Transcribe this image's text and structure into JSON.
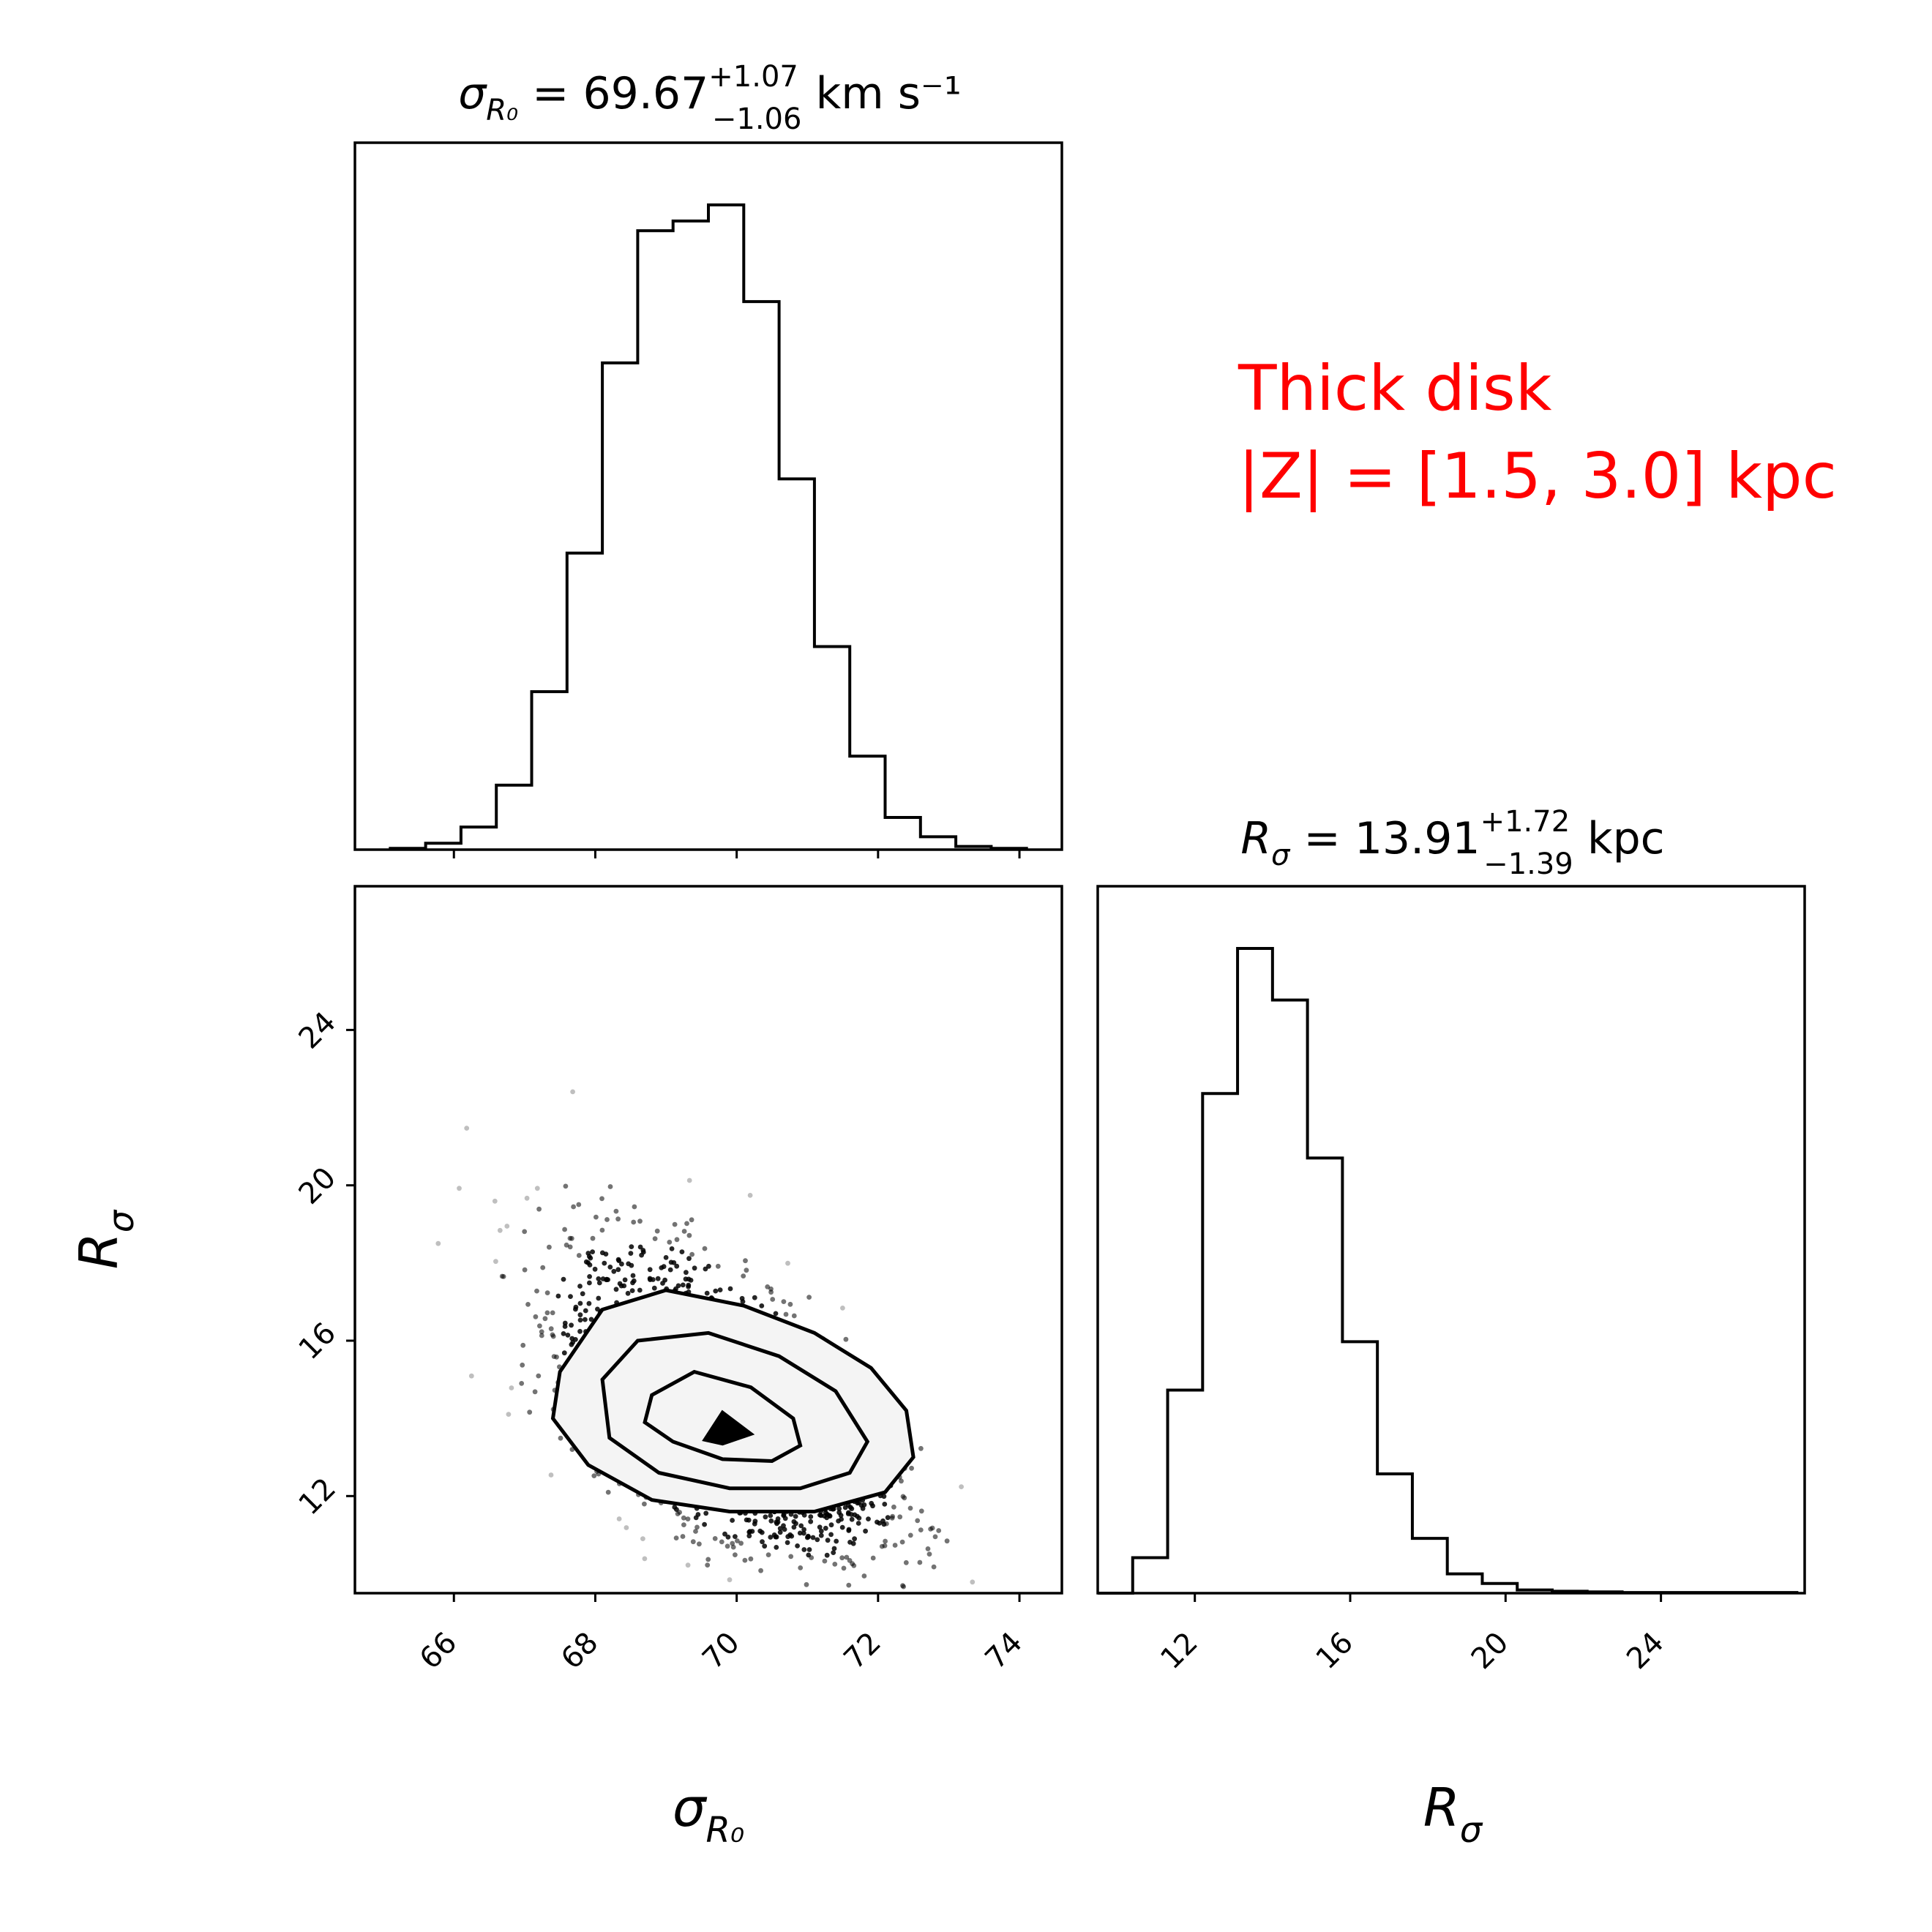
{
  "chart_data": [
    {
      "type": "histogram",
      "panel": "top-left",
      "title": {
        "lhs": "σ",
        "lhs_sub": "R₀",
        "value": " = 69.67",
        "err_plus": "+1.07",
        "err_minus": "−1.06",
        "unit": " km s⁻¹"
      },
      "xlim": [
        64.6,
        74.6
      ],
      "bin_edges": [
        65.1,
        65.6,
        66.1,
        66.6,
        67.1,
        67.6,
        68.1,
        68.6,
        69.1,
        69.6,
        70.1,
        70.6,
        71.1,
        71.6,
        72.1,
        72.6,
        73.1,
        73.6,
        74.1
      ],
      "counts": [
        0.2,
        1.0,
        3.5,
        10.0,
        24.5,
        46.0,
        75.5,
        96.0,
        97.5,
        100.0,
        85.0,
        57.5,
        31.5,
        14.5,
        5.0,
        2.0,
        0.5,
        0.2
      ],
      "xticks": [
        "66",
        "68",
        "70",
        "72",
        "74"
      ],
      "show_tick_labels": false
    },
    {
      "type": "scatter",
      "panel": "bottom-left",
      "xlim": [
        64.6,
        74.6
      ],
      "ylim": [
        9.5,
        27.7
      ],
      "xticks": [
        "66",
        "68",
        "70",
        "72",
        "74"
      ],
      "yticks": [
        "12",
        "16",
        "20",
        "24"
      ],
      "xlabel": "σ",
      "xlabel_sub": "R₀",
      "ylabel": "R",
      "ylabel_sub": "σ",
      "center": [
        69.8,
        13.9
      ],
      "density_cells": [
        {
          "x0": 68.4,
          "x1": 68.9,
          "y0": 14.5,
          "y1": 15.5,
          "v": 0.75
        },
        {
          "x0": 68.9,
          "x1": 69.4,
          "y0": 14.5,
          "y1": 15.5,
          "v": 0.7
        },
        {
          "x0": 69.4,
          "x1": 69.9,
          "y0": 14.5,
          "y1": 15.5,
          "v": 0.6
        },
        {
          "x0": 69.9,
          "x1": 70.4,
          "y0": 14.5,
          "y1": 15.5,
          "v": 0.75
        },
        {
          "x0": 68.9,
          "x1": 69.4,
          "y0": 13.5,
          "y1": 14.5,
          "v": 0.5
        },
        {
          "x0": 69.4,
          "x1": 69.9,
          "y0": 13.5,
          "y1": 14.5,
          "v": 0.22
        },
        {
          "x0": 69.9,
          "x1": 70.4,
          "y0": 13.5,
          "y1": 14.5,
          "v": 0.3
        },
        {
          "x0": 70.4,
          "x1": 70.9,
          "y0": 13.5,
          "y1": 14.5,
          "v": 0.55
        },
        {
          "x0": 69.4,
          "x1": 69.9,
          "y0": 12.8,
          "y1": 13.5,
          "v": 0.35
        },
        {
          "x0": 69.9,
          "x1": 70.4,
          "y0": 12.8,
          "y1": 13.5,
          "v": 0.4
        },
        {
          "x0": 70.4,
          "x1": 70.9,
          "y0": 12.8,
          "y1": 13.5,
          "v": 0.55
        },
        {
          "x0": 70.9,
          "x1": 71.4,
          "y0": 12.8,
          "y1": 13.8,
          "v": 0.7
        }
      ],
      "contours": [
        {
          "level": "inner",
          "points": [
            [
              69.55,
              13.45
            ],
            [
              69.8,
              14.15
            ],
            [
              70.2,
              13.6
            ],
            [
              69.8,
              13.35
            ]
          ]
        },
        {
          "level": "1-sigma",
          "points": [
            [
              68.8,
              14.6
            ],
            [
              69.4,
              15.2
            ],
            [
              70.2,
              14.8
            ],
            [
              70.8,
              14.0
            ],
            [
              70.9,
              13.3
            ],
            [
              70.5,
              12.9
            ],
            [
              69.8,
              12.95
            ],
            [
              69.1,
              13.4
            ],
            [
              68.7,
              13.9
            ]
          ]
        },
        {
          "level": "2-sigma",
          "points": [
            [
              68.1,
              15.0
            ],
            [
              68.6,
              16.0
            ],
            [
              69.6,
              16.2
            ],
            [
              70.6,
              15.6
            ],
            [
              71.4,
              14.7
            ],
            [
              71.85,
              13.4
            ],
            [
              71.6,
              12.6
            ],
            [
              70.9,
              12.2
            ],
            [
              69.9,
              12.2
            ],
            [
              68.9,
              12.6
            ],
            [
              68.2,
              13.5
            ]
          ]
        },
        {
          "level": "outer",
          "points": [
            [
              67.5,
              15.2
            ],
            [
              68.1,
              16.8
            ],
            [
              69.0,
              17.3
            ],
            [
              70.1,
              16.9
            ],
            [
              71.1,
              16.2
            ],
            [
              71.9,
              15.3
            ],
            [
              72.4,
              14.2
            ],
            [
              72.5,
              13.0
            ],
            [
              72.1,
              12.1
            ],
            [
              71.1,
              11.6
            ],
            [
              69.9,
              11.6
            ],
            [
              68.8,
              11.9
            ],
            [
              67.9,
              12.8
            ],
            [
              67.4,
              14.0
            ]
          ]
        }
      ]
    },
    {
      "type": "histogram",
      "panel": "bottom-right",
      "title": {
        "lhs": "R",
        "lhs_sub": "σ",
        "value": " = 13.91",
        "err_plus": "+1.72",
        "err_minus": "−1.39",
        "unit": " kpc"
      },
      "xlim": [
        9.5,
        27.7
      ],
      "bin_edges": [
        9.5,
        10.4,
        11.3,
        12.2,
        13.1,
        14.0,
        14.9,
        15.8,
        16.7,
        17.6,
        18.5,
        19.4,
        20.3,
        21.2,
        22.1,
        23.0,
        23.9,
        24.8,
        25.7,
        26.6,
        27.5
      ],
      "counts": [
        0.0,
        5.5,
        31.5,
        77.5,
        100.0,
        92.0,
        67.5,
        39.0,
        18.5,
        8.5,
        3.0,
        1.5,
        0.5,
        0.3,
        0.2,
        0.1,
        0.1,
        0.1,
        0.1,
        0.1
      ],
      "xticks": [
        "12",
        "16",
        "20",
        "24"
      ],
      "xlabel": "R",
      "xlabel_sub": "σ"
    }
  ],
  "annotation": {
    "line1": "Thick disk",
    "line2": "|Z| = [1.5, 3.0] kpc",
    "color": "#ff0000"
  }
}
